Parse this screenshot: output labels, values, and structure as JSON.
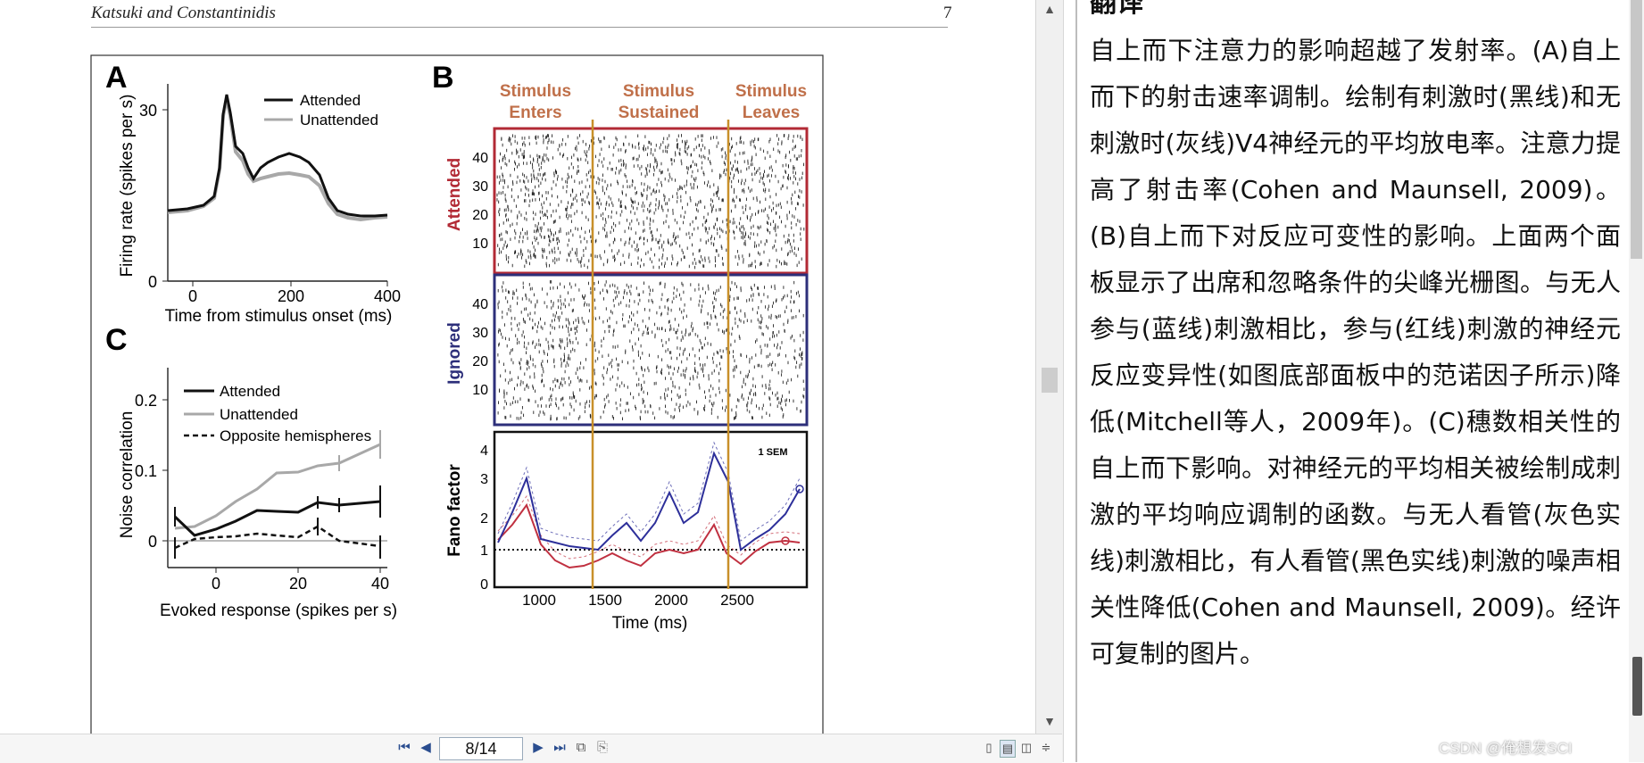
{
  "viewer": {
    "header_left": "Katsuki and Constantinidis",
    "header_right": "7",
    "page_indicator": "8/14"
  },
  "figure": {
    "panelA": {
      "letter": "A",
      "ylabel": "Firing rate (spikes per s)",
      "xlabel": "Time from stimulus onset (ms)",
      "yticks": [
        "30",
        "0"
      ],
      "xticks": [
        "0",
        "200",
        "400"
      ],
      "legend": [
        "Attended",
        "Unattended"
      ]
    },
    "panelB": {
      "letter": "B",
      "epochs": [
        {
          "line1": "Stimulus",
          "line2": "Enters"
        },
        {
          "line1": "Stimulus",
          "line2": "Sustained"
        },
        {
          "line1": "Stimulus",
          "line2": "Leaves"
        }
      ],
      "attended_label": "Attended",
      "ignored_label": "Ignored",
      "raster_yticks": [
        "40",
        "30",
        "20",
        "10"
      ],
      "fano_ylabel": "Fano factor",
      "fano_yticks": [
        "4",
        "3",
        "2",
        "1",
        "0"
      ],
      "xticks": [
        "1000",
        "1500",
        "2000",
        "2500"
      ],
      "xlabel": "Time (ms)",
      "sem_label": "1 SEM"
    },
    "panelC": {
      "letter": "C",
      "ylabel": "Noise correlation",
      "xlabel": "Evoked response (spikes per s)",
      "yticks": [
        "0.2",
        "0.1",
        "0"
      ],
      "xticks": [
        "0",
        "20",
        "40"
      ],
      "legend": [
        "Attended",
        "Unattended",
        "Opposite hemispheres"
      ]
    },
    "colors": {
      "epoch_text": "#c0704a",
      "attended_red": "#b22a35",
      "ignored_blue": "#2d2f7a",
      "epoch_line": "#c8902a",
      "unattended_gray": "#a8a8a8"
    }
  },
  "right_pane": {
    "heading": "翻译",
    "text": "自上而下注意力的影响超越了发射率。(A)自上而下的射击速率调制。绘制有刺激时(黑线)和无刺激时(灰线)V4神经元的平均放电率。注意力提高了射击率(Cohen and Maunsell, 2009)。(B)自上而下对反应可变性的影响。上面两个面板显示了出席和忽略条件的尖峰光栅图。与无人参与(蓝线)刺激相比，参与(红线)刺激的神经元反应变异性(如图底部面板中的范诺因子所示)降低(Mitchell等人，2009年)。(C)穗数相关性的自上而下影响。对神经元的平均相关被绘制成刺激的平均响应调制的函数。与无人看管(灰色实线)刺激相比，有人看管(黑色实线)刺激的噪声相关性降低(Cohen and Maunsell, 2009)。经许可复制的图片。",
    "watermark": "CSDN @俺想发SCI"
  }
}
